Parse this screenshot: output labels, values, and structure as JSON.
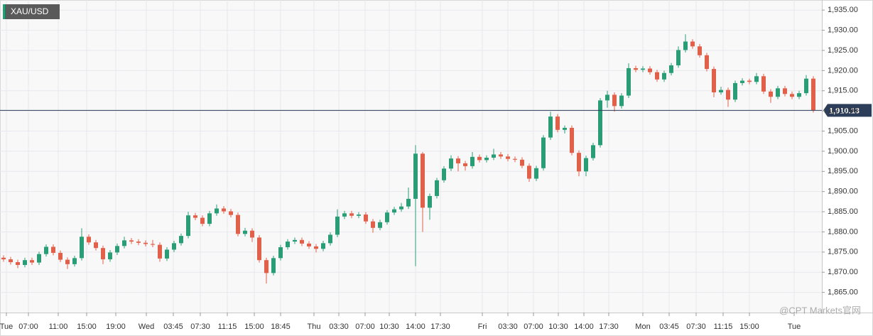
{
  "chart_data": {
    "type": "candlestick",
    "legend": "XAU/USD",
    "watermark": "@CPT Markets官网",
    "up_color": "#2a9d76",
    "down_color": "#e0604a",
    "grid": true,
    "ylim": [
      1860,
      1937.5
    ],
    "yticks": [
      {
        "value": 1865,
        "label": "1,865.00"
      },
      {
        "value": 1870,
        "label": "1,870.00"
      },
      {
        "value": 1875,
        "label": "1,875.00"
      },
      {
        "value": 1880,
        "label": "1,880.00"
      },
      {
        "value": 1885,
        "label": "1,885.00"
      },
      {
        "value": 1890,
        "label": "1,890.00"
      },
      {
        "value": 1895,
        "label": "1,895.00"
      },
      {
        "value": 1900,
        "label": "1,900.00"
      },
      {
        "value": 1905,
        "label": "1,905.00"
      },
      {
        "value": 1910,
        "label": "1,910.00"
      },
      {
        "value": 1915,
        "label": "1,915.00"
      },
      {
        "value": 1920,
        "label": "1,920.00"
      },
      {
        "value": 1925,
        "label": "1,925.00"
      },
      {
        "value": 1930,
        "label": "1,930.00"
      },
      {
        "value": 1935,
        "label": "1,935.00"
      }
    ],
    "xlim": [
      0,
      115.7
    ],
    "xticks": [
      {
        "value": 0.9,
        "label": "Tue"
      },
      {
        "value": 4,
        "label": "07:00"
      },
      {
        "value": 8.2,
        "label": "11:00"
      },
      {
        "value": 12.2,
        "label": "15:00"
      },
      {
        "value": 16.3,
        "label": "19:00"
      },
      {
        "value": 20.6,
        "label": "Wed"
      },
      {
        "value": 24.4,
        "label": "03:45"
      },
      {
        "value": 28.2,
        "label": "07:30"
      },
      {
        "value": 32,
        "label": "11:15"
      },
      {
        "value": 35.8,
        "label": "15:00"
      },
      {
        "value": 39.5,
        "label": "18:45"
      },
      {
        "value": 44.2,
        "label": "Thu"
      },
      {
        "value": 47.7,
        "label": "03:30"
      },
      {
        "value": 51.4,
        "label": "07:00"
      },
      {
        "value": 54.8,
        "label": "10:30"
      },
      {
        "value": 58.5,
        "label": "14:00"
      },
      {
        "value": 62,
        "label": "17:30"
      },
      {
        "value": 67.9,
        "label": "Fri"
      },
      {
        "value": 71.5,
        "label": "03:30"
      },
      {
        "value": 75.1,
        "label": "07:00"
      },
      {
        "value": 78.6,
        "label": "10:30"
      },
      {
        "value": 82.2,
        "label": "14:00"
      },
      {
        "value": 85.7,
        "label": "17:30"
      },
      {
        "value": 90.5,
        "label": "Mon"
      },
      {
        "value": 94.2,
        "label": "03:45"
      },
      {
        "value": 98,
        "label": "07:30"
      },
      {
        "value": 101.8,
        "label": "11:15"
      },
      {
        "value": 105.5,
        "label": "15:00"
      },
      {
        "value": 111.8,
        "label": "Tue"
      }
    ],
    "last": {
      "value": 1910.13,
      "label": "1,910.13"
    },
    "open": [
      1873.6,
      1873.2,
      1872.5,
      1871.8,
      1873.0,
      1872.4,
      1874.5,
      1876.3,
      1874.8,
      1873.1,
      1872.0,
      1873.5,
      1878.8,
      1877.4,
      1876.0,
      1873.2,
      1874.9,
      1876.5,
      1877.9,
      1877.6,
      1877.3,
      1877.0,
      1876.8,
      1873.4,
      1875.6,
      1877.2,
      1879.0,
      1884.1,
      1883.5,
      1882.0,
      1884.6,
      1885.8,
      1885.1,
      1884.2,
      1879.5,
      1880.3,
      1878.6,
      1873.0,
      1869.8,
      1873.5,
      1876.2,
      1877.6,
      1878.0,
      1877.1,
      1876.4,
      1875.8,
      1877.2,
      1879.3,
      1883.8,
      1884.6,
      1884.0,
      1884.3,
      1882.6,
      1881.0,
      1882.4,
      1884.8,
      1885.6,
      1886.3,
      1888.2,
      1899.4,
      1886.0,
      1888.9,
      1892.8,
      1895.7,
      1898.2,
      1897.0,
      1896.3,
      1898.6,
      1897.8,
      1898.4,
      1899.2,
      1898.7,
      1898.1,
      1897.9,
      1896.4,
      1893.2,
      1895.8,
      1903.4,
      1908.6,
      1905.3,
      1905.8,
      1899.6,
      1895.0,
      1898.3,
      1901.5,
      1912.6,
      1914.0,
      1911.2,
      1913.8,
      1920.6,
      1920.2,
      1920.5,
      1919.6,
      1917.8,
      1919.4,
      1921.3,
      1925.1,
      1927.2,
      1926.0,
      1923.8,
      1920.4,
      1914.6,
      1915.2,
      1912.8,
      1916.9,
      1917.5,
      1917.2,
      1918.6,
      1914.8,
      1913.5,
      1915.6,
      1914.2,
      1913.5,
      1914.4,
      1918.0
    ],
    "high": [
      1874.2,
      1873.8,
      1873.1,
      1873.6,
      1873.6,
      1875.1,
      1876.9,
      1876.9,
      1875.4,
      1873.7,
      1874.1,
      1880.9,
      1879.4,
      1878.0,
      1876.6,
      1875.5,
      1877.1,
      1878.8,
      1878.5,
      1878.2,
      1877.9,
      1878.0,
      1877.4,
      1876.2,
      1877.8,
      1879.6,
      1885.0,
      1884.7,
      1884.1,
      1885.2,
      1886.8,
      1886.4,
      1885.7,
      1884.8,
      1881.0,
      1880.9,
      1879.2,
      1873.6,
      1874.1,
      1876.8,
      1878.2,
      1878.6,
      1878.6,
      1877.7,
      1877.0,
      1877.8,
      1879.9,
      1885.6,
      1885.2,
      1885.2,
      1884.9,
      1884.9,
      1883.2,
      1883.0,
      1885.4,
      1886.2,
      1887.2,
      1891.0,
      1901.5,
      1899.8,
      1889.5,
      1893.4,
      1896.3,
      1899.0,
      1898.8,
      1897.6,
      1899.8,
      1899.2,
      1899.0,
      1900.6,
      1899.8,
      1899.3,
      1898.7,
      1898.5,
      1897.0,
      1896.4,
      1904.0,
      1909.8,
      1909.2,
      1906.4,
      1906.4,
      1900.2,
      1898.9,
      1902.1,
      1913.2,
      1915.0,
      1914.6,
      1914.4,
      1921.8,
      1921.2,
      1921.1,
      1921.1,
      1920.2,
      1920.0,
      1921.9,
      1926.0,
      1929.0,
      1927.8,
      1926.6,
      1924.4,
      1921.0,
      1916.0,
      1915.8,
      1917.5,
      1918.1,
      1918.0,
      1919.4,
      1919.2,
      1915.4,
      1916.2,
      1916.2,
      1914.8,
      1915.0,
      1918.9,
      1918.6
    ],
    "low": [
      1872.6,
      1871.9,
      1871.0,
      1871.2,
      1871.8,
      1871.8,
      1873.9,
      1874.2,
      1872.5,
      1870.8,
      1871.4,
      1872.9,
      1876.8,
      1875.4,
      1872.0,
      1872.6,
      1874.3,
      1875.9,
      1877.0,
      1876.7,
      1876.4,
      1876.2,
      1872.6,
      1872.8,
      1875.0,
      1876.6,
      1878.4,
      1882.9,
      1881.4,
      1881.4,
      1884.0,
      1884.5,
      1883.6,
      1878.9,
      1878.9,
      1877.5,
      1872.4,
      1867.2,
      1869.2,
      1872.9,
      1875.6,
      1877.0,
      1876.5,
      1875.8,
      1874.9,
      1875.2,
      1876.6,
      1878.7,
      1883.2,
      1883.4,
      1883.4,
      1882.0,
      1879.8,
      1880.4,
      1881.8,
      1884.2,
      1885.0,
      1885.7,
      1871.5,
      1880.0,
      1883.0,
      1888.3,
      1892.2,
      1895.1,
      1895.0,
      1895.2,
      1895.7,
      1897.2,
      1897.2,
      1897.8,
      1898.1,
      1897.5,
      1897.3,
      1895.8,
      1892.4,
      1892.6,
      1895.2,
      1902.8,
      1904.7,
      1904.4,
      1899.0,
      1893.8,
      1893.8,
      1897.7,
      1900.9,
      1910.8,
      1909.8,
      1910.6,
      1913.2,
      1919.6,
      1919.6,
      1919.0,
      1917.2,
      1917.2,
      1918.8,
      1920.7,
      1924.5,
      1925.4,
      1923.2,
      1919.8,
      1913.4,
      1914.0,
      1911.0,
      1912.2,
      1916.3,
      1916.6,
      1916.6,
      1914.2,
      1912.0,
      1912.9,
      1913.6,
      1912.9,
      1912.9,
      1913.8,
      1909.6
    ],
    "close": [
      1873.2,
      1872.5,
      1871.8,
      1873.0,
      1872.4,
      1874.5,
      1876.3,
      1874.8,
      1873.1,
      1872.0,
      1873.5,
      1878.8,
      1877.4,
      1876.0,
      1873.2,
      1874.9,
      1876.5,
      1877.9,
      1877.6,
      1877.3,
      1877.0,
      1876.8,
      1873.4,
      1875.6,
      1877.2,
      1879.0,
      1884.1,
      1883.5,
      1882.0,
      1884.6,
      1885.8,
      1885.1,
      1884.2,
      1879.5,
      1880.3,
      1878.6,
      1873.0,
      1869.8,
      1873.5,
      1876.2,
      1877.6,
      1878.0,
      1877.1,
      1876.4,
      1875.8,
      1877.2,
      1879.3,
      1883.8,
      1884.6,
      1884.0,
      1884.3,
      1882.6,
      1881.0,
      1882.4,
      1884.8,
      1885.6,
      1886.3,
      1888.2,
      1899.4,
      1886.0,
      1888.9,
      1892.8,
      1895.7,
      1898.2,
      1897.0,
      1896.3,
      1898.6,
      1897.8,
      1898.4,
      1899.2,
      1898.7,
      1898.1,
      1897.9,
      1896.4,
      1893.2,
      1895.8,
      1903.4,
      1908.6,
      1905.3,
      1905.8,
      1899.6,
      1895.0,
      1898.3,
      1901.5,
      1912.6,
      1914.0,
      1911.2,
      1913.8,
      1920.6,
      1920.2,
      1920.5,
      1919.6,
      1917.8,
      1919.4,
      1921.3,
      1925.1,
      1927.2,
      1926.0,
      1923.8,
      1920.4,
      1914.6,
      1915.2,
      1912.8,
      1916.9,
      1917.5,
      1917.2,
      1918.6,
      1914.8,
      1913.5,
      1915.6,
      1914.2,
      1913.5,
      1914.4,
      1918.0,
      1910.13
    ]
  }
}
